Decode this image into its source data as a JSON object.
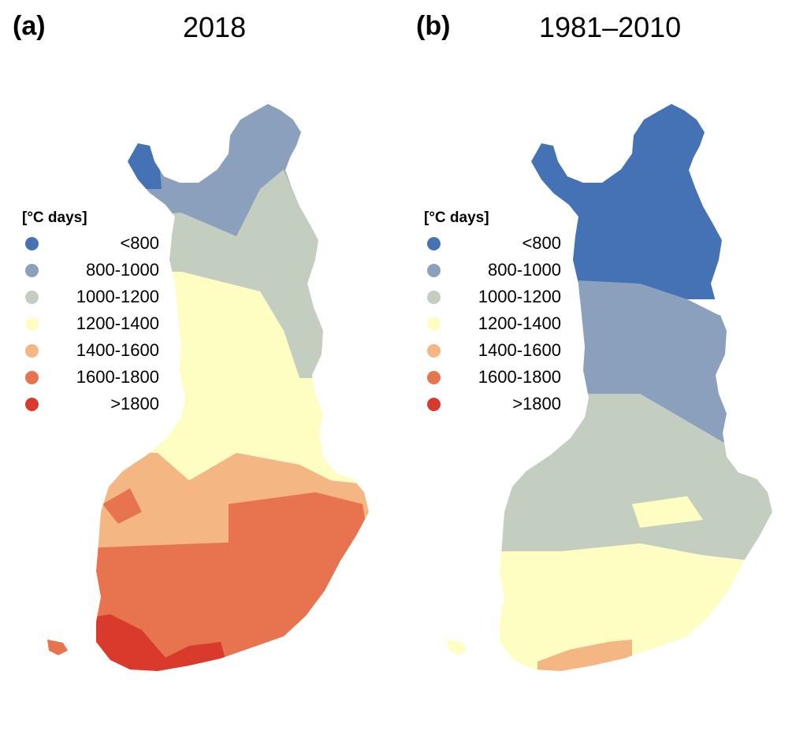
{
  "panels": [
    {
      "letter": "(a)",
      "title": "2018",
      "legend_title": "[°C days]",
      "zones": [
        "c0",
        "c1",
        "c2",
        "c3",
        "c4",
        "c5",
        "c6"
      ]
    },
    {
      "letter": "(b)",
      "title": "1981–2010",
      "legend_title": "[°C days]",
      "zones": [
        "c0",
        "c1",
        "c2",
        "c3",
        "c4"
      ]
    }
  ],
  "legend": {
    "items": [
      {
        "label": "<800",
        "color": "#4472b4"
      },
      {
        "label": "800-1000",
        "color": "#8aa0bd"
      },
      {
        "label": "1000-1200",
        "color": "#c3cdc0"
      },
      {
        "label": "1200-1400",
        "color": "#fefec2"
      },
      {
        "label": "1400-1600",
        "color": "#f4b683"
      },
      {
        "label": "1600-1800",
        "color": "#e8744f"
      },
      {
        "label": ">1800",
        "color": "#d93a2b"
      }
    ]
  },
  "map_zones": {
    "a": [
      {
        "class": "800-1000",
        "color": "#8aa0bd"
      },
      {
        "class": "<800",
        "color": "#4472b4"
      },
      {
        "class": "1000-1200",
        "color": "#c3cdc0"
      },
      {
        "class": "1200-1400",
        "color": "#fefec2"
      },
      {
        "class": "1400-1600",
        "color": "#f4b683"
      },
      {
        "class": "1600-1800",
        "color": "#e8744f"
      },
      {
        "class": ">1800",
        "color": "#d93a2b"
      }
    ],
    "b": [
      {
        "class": "<800",
        "color": "#4472b4"
      },
      {
        "class": "800-1000",
        "color": "#8aa0bd"
      },
      {
        "class": "1000-1200",
        "color": "#c3cdc0"
      },
      {
        "class": "1200-1400",
        "color": "#fefec2"
      },
      {
        "class": "1400-1600",
        "color": "#f4b683"
      }
    ]
  }
}
